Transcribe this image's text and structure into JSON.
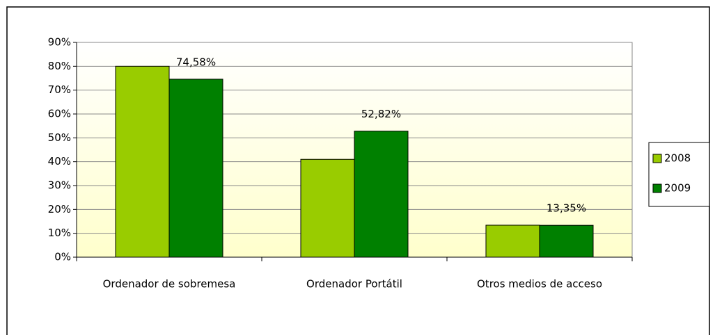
{
  "chart_data": {
    "type": "bar",
    "categories": [
      "Ordenador de sobremesa",
      "Ordenador Portátil",
      "Otros medios de acceso"
    ],
    "series": [
      {
        "name": "2008",
        "color": "#99cc00",
        "values": [
          80,
          41,
          13.4
        ]
      },
      {
        "name": "2009",
        "color": "#008000",
        "values": [
          74.58,
          52.82,
          13.35
        ],
        "value_labels": [
          "74,58%",
          "52,82%",
          "13,35%"
        ]
      }
    ],
    "ylim": [
      0,
      90
    ],
    "yticks": [
      {
        "value": 0,
        "label": "0%"
      },
      {
        "value": 10,
        "label": "10%"
      },
      {
        "value": 20,
        "label": "20%"
      },
      {
        "value": 30,
        "label": "30%"
      },
      {
        "value": 40,
        "label": "40%"
      },
      {
        "value": 50,
        "label": "50%"
      },
      {
        "value": 60,
        "label": "60%"
      },
      {
        "value": 70,
        "label": "70%"
      },
      {
        "value": 80,
        "label": "80%"
      },
      {
        "value": 90,
        "label": "90%"
      }
    ],
    "grid": true,
    "legend": "right"
  }
}
